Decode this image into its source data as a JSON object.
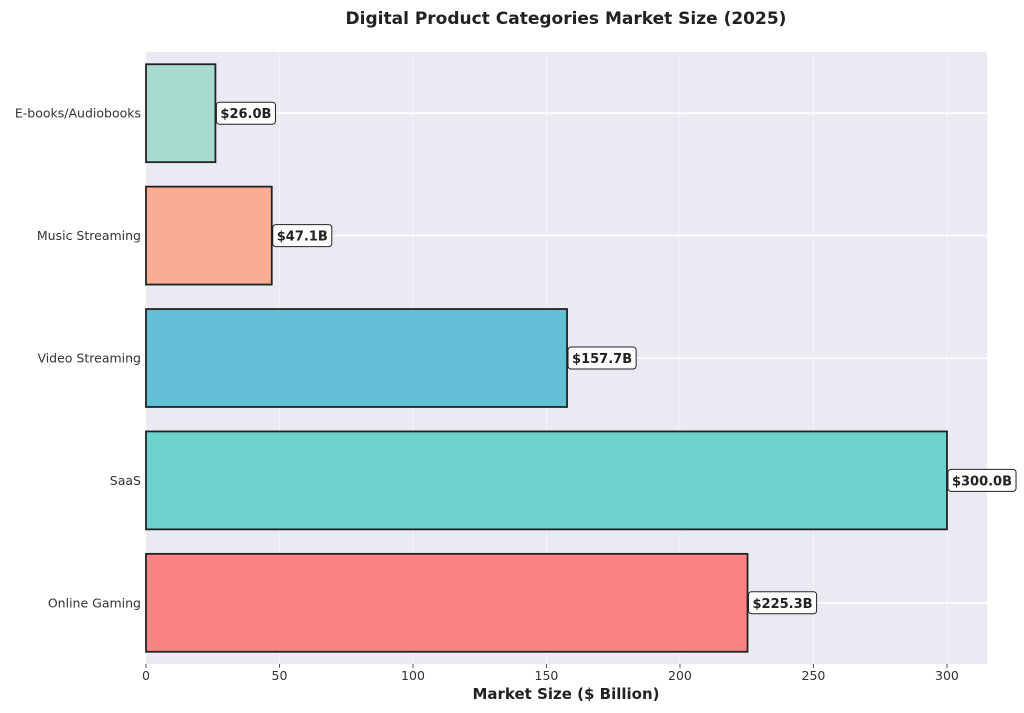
{
  "chart_data": {
    "type": "bar",
    "orientation": "horizontal",
    "title": "Digital Product Categories Market Size (2025)",
    "xlabel": "Market Size ($ Billion)",
    "ylabel": "",
    "xlim": [
      0,
      315
    ],
    "xticks": [
      0,
      50,
      100,
      150,
      200,
      250,
      300
    ],
    "grid": true,
    "categories": [
      "Online Gaming",
      "SaaS",
      "Video Streaming",
      "Music Streaming",
      "E-books/Audiobooks"
    ],
    "values": [
      225.3,
      300.0,
      157.7,
      47.1,
      26.0
    ],
    "value_labels": [
      "$225.3B",
      "$300.0B",
      "$157.7B",
      "$47.1B",
      "$26.0B"
    ],
    "colors": [
      "#fa8484",
      "#6dd3cd",
      "#62bfd6",
      "#f9ae94",
      "#a8dbd0"
    ],
    "plot_background": "#eaeaf2",
    "bar_edge_color": "#222222"
  }
}
